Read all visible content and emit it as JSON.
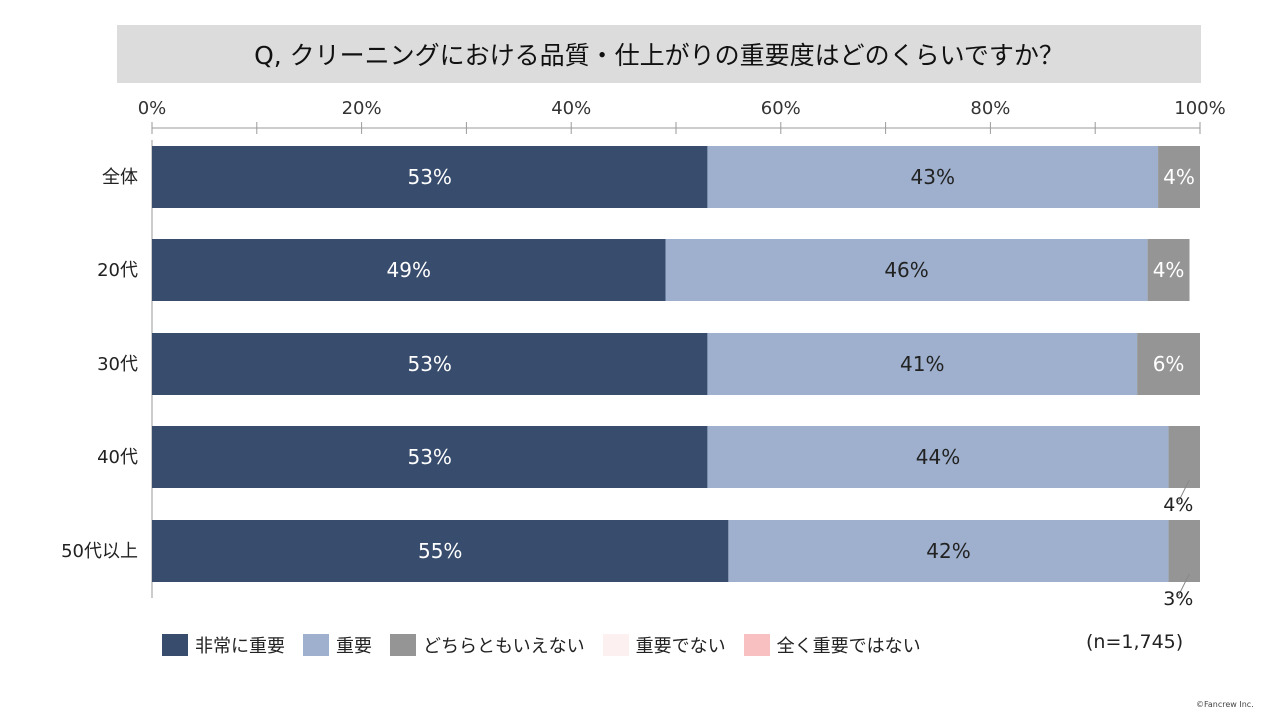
{
  "chart_data": {
    "type": "bar",
    "orientation": "horizontal",
    "stacked": true,
    "title": "Q, クリーニングにおける品質・仕上がりの重要度はどのくらいですか？",
    "categories": [
      "全体",
      "20代",
      "30代",
      "40代",
      "50代以上"
    ],
    "xlim": [
      0,
      100
    ],
    "x_ticks": [
      "0%",
      "20%",
      "40%",
      "60%",
      "80%",
      "100%"
    ],
    "series": [
      {
        "name": "非常に重要",
        "color": "#384c6d",
        "values": [
          53,
          49,
          53,
          53,
          55
        ],
        "labels": [
          "53%",
          "49%",
          "53%",
          "53%",
          "55%"
        ],
        "label_color": "#ffffff"
      },
      {
        "name": "重要",
        "color": "#9eb0cd",
        "values": [
          43,
          46,
          41,
          44,
          42
        ],
        "labels": [
          "43%",
          "46%",
          "41%",
          "44%",
          "42%"
        ],
        "label_color": "#222222"
      },
      {
        "name": "どちらともいえない",
        "color": "#959595",
        "values": [
          4,
          4,
          6,
          4,
          3
        ],
        "labels": [
          "4%",
          "4%",
          "6%",
          "4%",
          "3%"
        ],
        "label_color": "#ffffff"
      },
      {
        "name": "重要でない",
        "color": "#fcf0f0",
        "values": [
          0,
          0,
          0,
          0,
          0
        ],
        "labels": [
          "",
          "",
          "",
          "",
          ""
        ],
        "label_color": "#222222"
      },
      {
        "name": "全く重要ではない",
        "color": "#f8c0c0",
        "values": [
          0.2,
          0,
          0.2,
          0.2,
          0
        ],
        "labels": [
          "",
          "",
          "",
          "",
          ""
        ],
        "label_color": "#222222"
      }
    ],
    "sample_size": "(n=1,745)",
    "legend_position": "bottom-left"
  },
  "footer": {
    "copyright": "©Fancrew Inc."
  }
}
